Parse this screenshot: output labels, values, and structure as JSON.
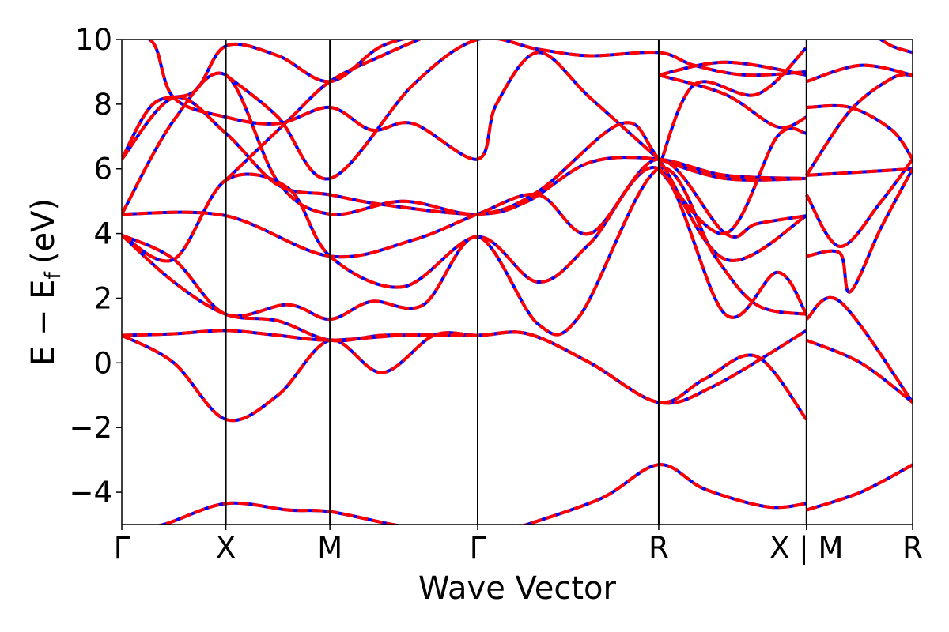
{
  "chart_data": {
    "type": "line",
    "title": "",
    "xlabel": "Wave Vector",
    "ylabel_main": "E − E",
    "ylabel_sub": "f",
    "ylabel_unit": "(eV)",
    "ylim": [
      -5,
      10
    ],
    "yticks": [
      {
        "value": -4,
        "label": "−4"
      },
      {
        "value": -2,
        "label": "−2"
      },
      {
        "value": 0,
        "label": "0"
      },
      {
        "value": 2,
        "label": "2"
      },
      {
        "value": 4,
        "label": "4"
      },
      {
        "value": 6,
        "label": "6"
      },
      {
        "value": 8,
        "label": "8"
      },
      {
        "value": 10,
        "label": "10"
      }
    ],
    "xlim": [
      0,
      7.6
    ],
    "kpoints": [
      {
        "x": 0.0,
        "label": "Γ"
      },
      {
        "x": 1.0,
        "label": "X"
      },
      {
        "x": 2.0,
        "label": "M"
      },
      {
        "x": 3.42,
        "label": "Γ"
      },
      {
        "x": 5.16,
        "label": "R"
      },
      {
        "x": 6.58,
        "label": "X | M"
      },
      {
        "x": 7.6,
        "label": "R"
      }
    ],
    "grid": false,
    "series_style": [
      {
        "color": "#0000ff",
        "dashed": false,
        "width": 4
      },
      {
        "color": "#ff0000",
        "dashed": true,
        "width": 4
      }
    ],
    "bands": [
      [
        [
          0,
          0.85
        ],
        [
          0.5,
          0.9
        ],
        [
          1.0,
          1.0
        ],
        [
          1.5,
          0.85
        ],
        [
          2.0,
          0.7
        ],
        [
          2.7,
          0.85
        ],
        [
          3.42,
          0.85
        ],
        [
          3.9,
          0.9
        ],
        [
          4.5,
          0.0
        ],
        [
          5.16,
          -1.22
        ],
        [
          5.7,
          -0.7
        ],
        [
          6.58,
          1.0
        ]
      ],
      [
        [
          0,
          0.85
        ],
        [
          0.5,
          0.0
        ],
        [
          1.0,
          -1.75
        ],
        [
          1.5,
          -1.0
        ],
        [
          2.0,
          0.7
        ],
        [
          2.5,
          -0.3
        ],
        [
          3.0,
          0.85
        ],
        [
          3.42,
          0.85
        ],
        [
          3.9,
          0.9
        ],
        [
          4.5,
          0.0
        ],
        [
          5.16,
          -1.22
        ],
        [
          5.6,
          -0.5
        ],
        [
          6.1,
          0.2
        ],
        [
          6.58,
          -1.75
        ]
      ],
      [
        [
          0,
          3.95
        ],
        [
          0.5,
          2.5
        ],
        [
          1.0,
          1.5
        ],
        [
          1.5,
          1.3
        ],
        [
          2.0,
          0.7
        ],
        [
          2.5,
          0.85
        ],
        [
          3.0,
          0.85
        ],
        [
          3.42,
          0.85
        ]
      ],
      [
        [
          0,
          3.95
        ],
        [
          0.5,
          3.2
        ],
        [
          1.0,
          1.5
        ],
        [
          1.6,
          1.8
        ],
        [
          2.0,
          1.35
        ],
        [
          2.4,
          1.9
        ],
        [
          2.9,
          1.8
        ],
        [
          3.42,
          3.9
        ],
        [
          4.0,
          1.2
        ],
        [
          4.4,
          1.45
        ],
        [
          5.16,
          6.0
        ],
        [
          5.7,
          3.3
        ],
        [
          6.1,
          1.8
        ],
        [
          6.58,
          1.5
        ]
      ],
      [
        [
          0,
          3.95
        ],
        [
          0.5,
          3.2
        ],
        [
          1.0,
          5.65
        ],
        [
          1.6,
          5.4
        ],
        [
          2.0,
          3.3
        ],
        [
          2.7,
          2.35
        ],
        [
          3.42,
          3.9
        ],
        [
          4.0,
          2.5
        ],
        [
          4.5,
          3.7
        ],
        [
          5.16,
          6.0
        ],
        [
          5.8,
          1.5
        ],
        [
          6.3,
          2.8
        ],
        [
          6.58,
          1.5
        ]
      ],
      [
        [
          0,
          4.6
        ],
        [
          1.0,
          4.55
        ],
        [
          2.0,
          3.3
        ],
        [
          2.8,
          3.8
        ],
        [
          3.42,
          4.6
        ],
        [
          4.0,
          5.2
        ],
        [
          4.5,
          4.0
        ],
        [
          5.16,
          6.3
        ],
        [
          5.8,
          4.0
        ],
        [
          6.1,
          4.3
        ],
        [
          6.58,
          4.55
        ]
      ],
      [
        [
          0,
          4.6
        ],
        [
          0.5,
          7.5
        ],
        [
          1.0,
          8.9
        ],
        [
          1.5,
          5.6
        ],
        [
          2.0,
          4.6
        ],
        [
          2.7,
          5.0
        ],
        [
          3.42,
          4.6
        ],
        [
          4.0,
          5.3
        ],
        [
          4.8,
          7.4
        ],
        [
          5.16,
          6.3
        ],
        [
          5.8,
          3.2
        ],
        [
          6.58,
          4.55
        ]
      ],
      [
        [
          0,
          6.3
        ],
        [
          0.5,
          8.2
        ],
        [
          1.0,
          7.1
        ],
        [
          1.5,
          5.5
        ],
        [
          2.0,
          5.2
        ],
        [
          2.5,
          4.9
        ],
        [
          3.42,
          4.6
        ],
        [
          3.9,
          5.0
        ],
        [
          4.5,
          6.2
        ],
        [
          5.16,
          6.3
        ],
        [
          5.8,
          5.8
        ],
        [
          6.58,
          5.7
        ]
      ],
      [
        [
          0,
          6.3
        ],
        [
          0.3,
          8.0
        ],
        [
          0.7,
          8.4
        ],
        [
          1.0,
          9.8
        ],
        [
          1.5,
          9.5
        ],
        [
          2.0,
          8.7
        ],
        [
          2.5,
          9.8
        ],
        [
          3.0,
          10.2
        ]
      ],
      [
        [
          0,
          10.2
        ],
        [
          0.3,
          9.9
        ],
        [
          0.5,
          8.2
        ],
        [
          1.0,
          7.6
        ],
        [
          1.5,
          7.4
        ],
        [
          2.0,
          7.9
        ],
        [
          2.4,
          7.2
        ],
        [
          2.8,
          7.4
        ],
        [
          3.42,
          6.3
        ],
        [
          3.6,
          8.0
        ],
        [
          4.0,
          9.6
        ],
        [
          4.5,
          8.2
        ],
        [
          5.16,
          6.3
        ]
      ],
      [
        [
          1.0,
          5.65
        ],
        [
          1.6,
          7.5
        ],
        [
          2.0,
          8.7
        ],
        [
          2.5,
          9.5
        ],
        [
          3.0,
          10.2
        ]
      ],
      [
        [
          1.0,
          8.9
        ],
        [
          1.5,
          7.6
        ],
        [
          2.0,
          5.7
        ],
        [
          2.8,
          8.6
        ],
        [
          3.42,
          10.0
        ],
        [
          4.0,
          9.7
        ],
        [
          4.5,
          9.5
        ],
        [
          5.16,
          9.6
        ],
        [
          5.5,
          9.2
        ],
        [
          6.0,
          8.9
        ],
        [
          6.58,
          9.0
        ]
      ],
      [
        [
          5.16,
          6.0
        ],
        [
          5.5,
          8.6
        ],
        [
          6.1,
          8.3
        ],
        [
          6.58,
          9.75
        ]
      ],
      [
        [
          5.16,
          8.9
        ],
        [
          5.8,
          8.3
        ],
        [
          6.3,
          7.3
        ],
        [
          6.58,
          7.6
        ]
      ],
      [
        [
          5.16,
          8.9
        ],
        [
          5.8,
          9.3
        ],
        [
          6.58,
          8.9
        ]
      ],
      [
        [
          5.16,
          6.3
        ],
        [
          5.8,
          5.7
        ],
        [
          6.58,
          5.7
        ]
      ],
      [
        [
          5.16,
          6.0
        ],
        [
          5.8,
          4.0
        ],
        [
          6.3,
          7.0
        ],
        [
          6.58,
          7.1
        ]
      ],
      [
        [
          0,
          -5.2
        ],
        [
          0.4,
          -5.0
        ],
        [
          1.0,
          -4.35
        ],
        [
          1.6,
          -4.55
        ],
        [
          2.0,
          -4.6
        ],
        [
          2.6,
          -5.0
        ],
        [
          3.0,
          -5.2
        ]
      ],
      [
        [
          3.8,
          -5.1
        ],
        [
          4.6,
          -4.2
        ],
        [
          5.16,
          -3.15
        ],
        [
          5.6,
          -3.9
        ],
        [
          6.2,
          -4.45
        ],
        [
          6.58,
          -4.35
        ]
      ],
      [
        [
          6.58,
          -4.55
        ],
        [
          7.1,
          -4.0
        ],
        [
          7.6,
          -3.15
        ]
      ],
      [
        [
          6.58,
          1.35
        ],
        [
          6.9,
          1.9
        ],
        [
          7.6,
          -1.22
        ]
      ],
      [
        [
          6.58,
          0.7
        ],
        [
          7.1,
          0.0
        ],
        [
          7.6,
          -1.22
        ]
      ],
      [
        [
          6.58,
          3.3
        ],
        [
          6.9,
          3.4
        ],
        [
          7.0,
          2.2
        ],
        [
          7.3,
          4.2
        ],
        [
          7.6,
          6.0
        ]
      ],
      [
        [
          6.58,
          5.2
        ],
        [
          6.9,
          3.6
        ],
        [
          7.3,
          5.0
        ],
        [
          7.6,
          6.3
        ]
      ],
      [
        [
          6.58,
          5.8
        ],
        [
          7.1,
          5.9
        ],
        [
          7.6,
          6.0
        ]
      ],
      [
        [
          6.58,
          8.7
        ],
        [
          7.1,
          9.2
        ],
        [
          7.6,
          8.9
        ]
      ],
      [
        [
          6.58,
          7.9
        ],
        [
          7.0,
          7.9
        ],
        [
          7.4,
          7.2
        ],
        [
          7.6,
          6.3
        ]
      ],
      [
        [
          6.58,
          5.8
        ],
        [
          7.0,
          7.8
        ],
        [
          7.4,
          8.8
        ],
        [
          7.6,
          8.9
        ]
      ],
      [
        [
          7.2,
          10.2
        ],
        [
          7.4,
          9.8
        ],
        [
          7.6,
          9.6
        ]
      ]
    ]
  }
}
